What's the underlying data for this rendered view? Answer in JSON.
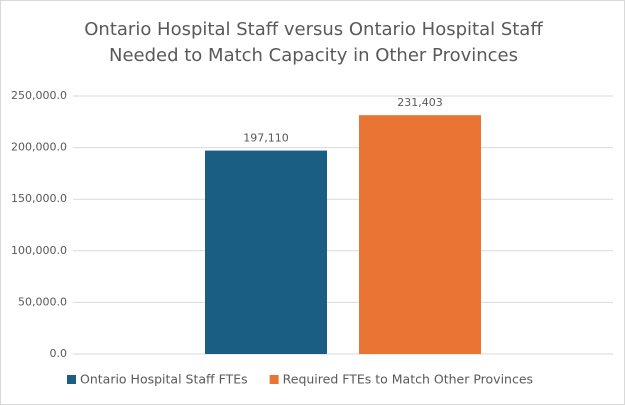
{
  "chart_data": {
    "type": "bar",
    "title": "Ontario Hospital Staff versus Ontario Hospital Staff Needed to Match Capacity in Other Provinces",
    "categories": [
      null
    ],
    "series": [
      {
        "name": "Ontario Hospital Staff FTEs",
        "color": "#1b5e84",
        "values": [
          197110
        ],
        "value_labels": [
          "197,110"
        ]
      },
      {
        "name": "Required FTEs to Match Other Provinces",
        "color": "#e97433",
        "values": [
          231403
        ],
        "value_labels": [
          "231,403"
        ]
      }
    ],
    "ylim": [
      0,
      250000
    ],
    "yticks": [
      {
        "value": 0,
        "label": "0.0"
      },
      {
        "value": 50000,
        "label": "50,000.0"
      },
      {
        "value": 100000,
        "label": "100,000.0"
      },
      {
        "value": 150000,
        "label": "150,000.0"
      },
      {
        "value": 200000,
        "label": "200,000.0"
      },
      {
        "value": 250000,
        "label": "250,000.0"
      }
    ],
    "grid": true,
    "legend": "bottom"
  }
}
